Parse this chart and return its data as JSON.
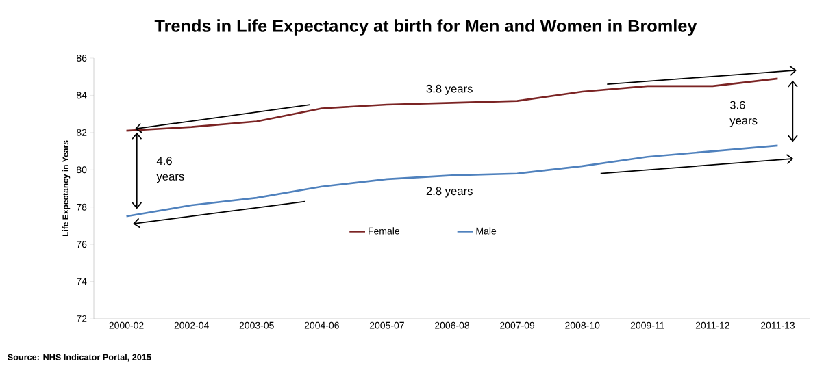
{
  "chart_data": {
    "type": "line",
    "title": "Trends in Life Expectancy at birth for Men and Women in Bromley",
    "ylabel": "Life Expectancy in Years",
    "categories": [
      "2000-02",
      "2002-04",
      "2003-05",
      "2004-06",
      "2005-07",
      "2006-08",
      "2007-09",
      "2008-10",
      "2009-11",
      "2011-12",
      "2011-13"
    ],
    "series": [
      {
        "name": "Female",
        "color": "#7b2424",
        "values": [
          82.1,
          82.3,
          82.6,
          83.3,
          83.5,
          83.6,
          83.7,
          84.2,
          84.5,
          84.5,
          84.9
        ]
      },
      {
        "name": "Male",
        "color": "#4f81bd",
        "values": [
          77.5,
          78.1,
          78.5,
          79.1,
          79.5,
          79.7,
          79.8,
          80.2,
          80.7,
          81.0,
          81.3
        ]
      }
    ],
    "ylim": [
      72,
      86
    ],
    "yticks": [
      72,
      74,
      76,
      78,
      80,
      82,
      84,
      86
    ],
    "grid": false,
    "legend": "center",
    "marker": "none",
    "line_style": "solid",
    "annotations": [
      "3.8 years",
      "2.8 years",
      "4.6 years",
      "3.6 years",
      "Source: NHS Indicator Portal, 2015"
    ]
  }
}
